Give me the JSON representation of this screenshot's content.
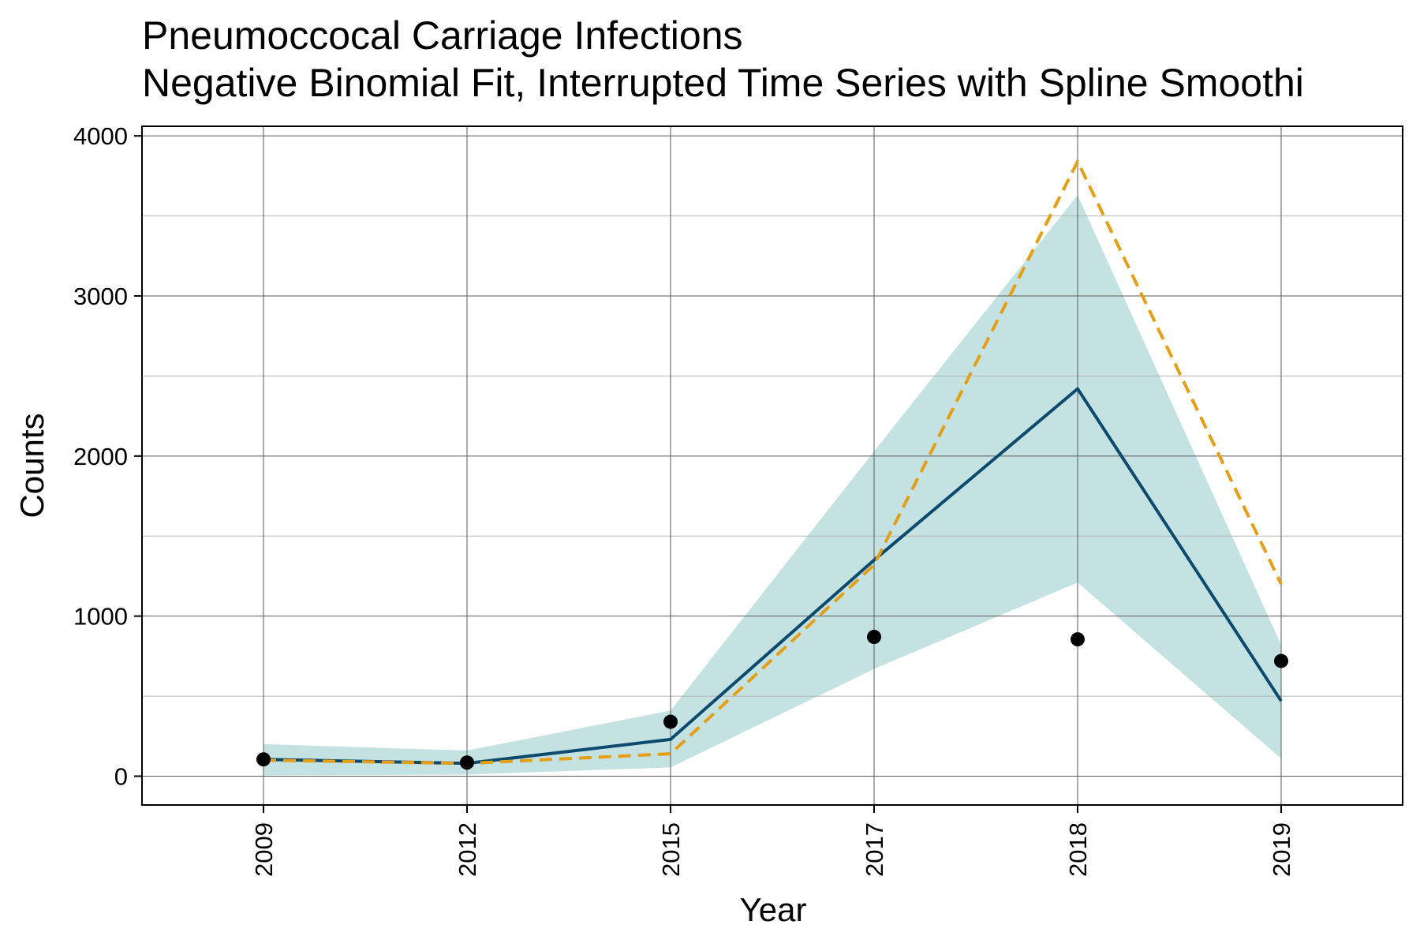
{
  "chart_data": {
    "type": "line",
    "title": "Pneumoccocal Carriage Infections",
    "subtitle": "Negative Binomial Fit, Interrupted Time Series with Spline Smoothi",
    "xlabel": "Year",
    "ylabel": "Counts",
    "categories": [
      "2009",
      "2012",
      "2015",
      "2017",
      "2018",
      "2019"
    ],
    "ylim": [
      -180,
      4060
    ],
    "y_ticks": [
      0,
      1000,
      2000,
      3000,
      4000
    ],
    "grid": true,
    "series": [
      {
        "kind": "band",
        "lower": [
          5,
          10,
          55,
          670,
          1210,
          110
        ],
        "upper": [
          200,
          160,
          410,
          2030,
          3630,
          820
        ]
      },
      {
        "kind": "line",
        "values": [
          105,
          80,
          230,
          1350,
          2420,
          470
        ]
      },
      {
        "kind": "dashed-line",
        "values": [
          100,
          80,
          140,
          1320,
          3840,
          1200
        ]
      },
      {
        "kind": "points",
        "values": [
          105,
          85,
          340,
          870,
          855,
          720
        ]
      }
    ],
    "colors": {
      "band": "#c4e2e1",
      "line": "#0c4a6e",
      "dashed": "#e59f16",
      "points": "#000000",
      "grid_major": "#5a5a5a",
      "grid_minor": "#b3b3b3"
    }
  }
}
